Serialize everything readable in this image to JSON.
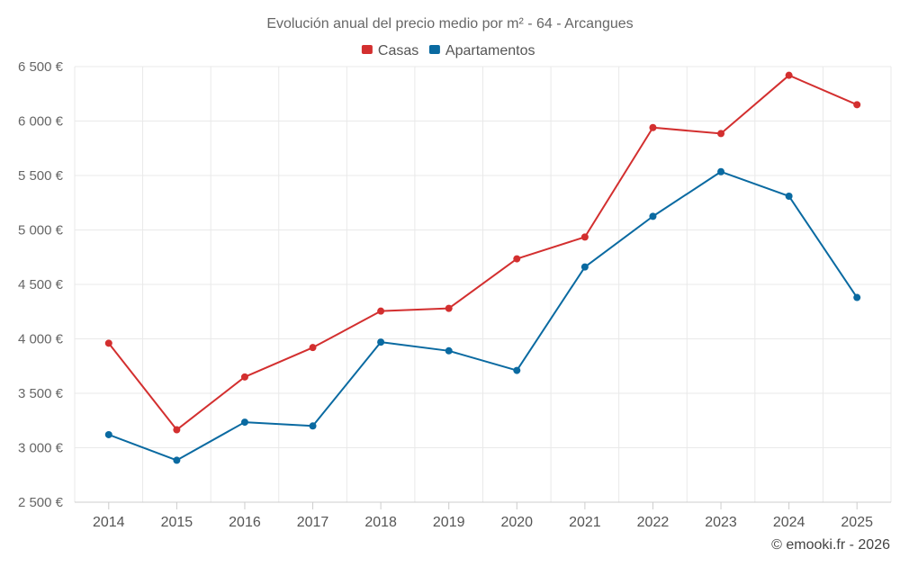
{
  "chart_data": {
    "type": "line",
    "title": "Evolución anual del precio medio por m² - 64 - Arcangues",
    "categories": [
      "2014",
      "2015",
      "2016",
      "2017",
      "2018",
      "2019",
      "2020",
      "2021",
      "2022",
      "2023",
      "2024",
      "2025"
    ],
    "series": [
      {
        "name": "Casas",
        "color": "#d32f2f",
        "values": [
          3960,
          3165,
          3650,
          3920,
          4255,
          4280,
          4735,
          4935,
          5940,
          5885,
          6420,
          6150
        ]
      },
      {
        "name": "Apartamentos",
        "color": "#0a6aa1",
        "values": [
          3120,
          2885,
          3235,
          3200,
          3970,
          3890,
          3710,
          4660,
          5125,
          5535,
          5310,
          4380
        ]
      }
    ],
    "ylim": [
      2500,
      6500
    ],
    "yticks": [
      2500,
      3000,
      3500,
      4000,
      4500,
      5000,
      5500,
      6000,
      6500
    ],
    "ytick_labels": [
      "2 500 €",
      "3 000 €",
      "3 500 €",
      "4 000 €",
      "4 500 €",
      "5 000 €",
      "5 500 €",
      "6 000 €",
      "6 500 €"
    ],
    "xlabel": "",
    "ylabel": "",
    "grid": true,
    "legend_position": "top-center"
  },
  "credit": "© emooki.fr - 2026"
}
